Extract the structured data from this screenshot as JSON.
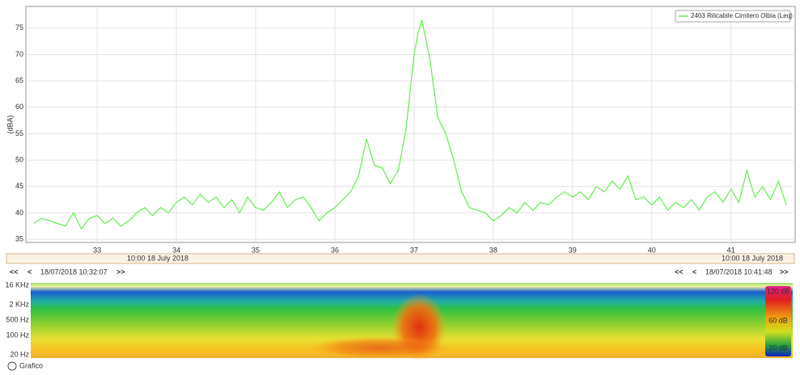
{
  "chart_data": {
    "type": "line",
    "y_label": "(dBA)",
    "x": [
      32.2,
      32.3,
      32.4,
      32.5,
      32.6,
      32.7,
      32.8,
      32.9,
      33.0,
      33.1,
      33.2,
      33.3,
      33.4,
      33.5,
      33.6,
      33.7,
      33.8,
      33.9,
      34.0,
      34.1,
      34.2,
      34.3,
      34.4,
      34.5,
      34.6,
      34.7,
      34.8,
      34.9,
      35.0,
      35.1,
      35.2,
      35.3,
      35.4,
      35.5,
      35.6,
      35.7,
      35.8,
      35.9,
      36.0,
      36.1,
      36.2,
      36.3,
      36.4,
      36.5,
      36.6,
      36.7,
      36.8,
      36.9,
      37.0,
      37.05,
      37.1,
      37.2,
      37.3,
      37.4,
      37.5,
      37.6,
      37.7,
      37.8,
      37.9,
      38.0,
      38.1,
      38.2,
      38.3,
      38.4,
      38.5,
      38.6,
      38.7,
      38.8,
      38.9,
      39.0,
      39.1,
      39.2,
      39.3,
      39.4,
      39.5,
      39.6,
      39.7,
      39.8,
      39.9,
      40.0,
      40.1,
      40.2,
      40.3,
      40.4,
      40.5,
      40.6,
      40.7,
      40.8,
      40.9,
      41.0,
      41.1,
      41.2,
      41.3,
      41.4,
      41.5,
      41.6,
      41.7
    ],
    "series": [
      {
        "name": "2403 Rilicabile Cimitero Olbia (Leq)",
        "color": "#66ee55",
        "values": [
          38,
          39,
          38.5,
          38,
          37.5,
          40,
          37,
          39,
          39.5,
          38,
          39,
          37.5,
          38.5,
          40,
          41,
          39.5,
          41,
          40,
          42,
          43,
          41.5,
          43.5,
          42,
          43,
          41,
          42.5,
          40,
          43,
          41,
          40.5,
          42,
          44,
          41,
          42.5,
          43,
          41,
          38.5,
          40,
          41,
          42.5,
          44,
          47,
          54,
          49,
          48.5,
          45.5,
          48,
          56,
          70,
          74,
          76.5,
          69,
          58,
          55,
          50,
          44,
          41,
          40.5,
          40,
          38.5,
          39.5,
          41,
          40,
          42,
          40.5,
          42,
          41.5,
          43,
          44,
          43,
          44,
          42.5,
          45,
          44,
          46,
          44.5,
          47,
          42.5,
          43,
          41.5,
          43,
          40.5,
          42,
          41,
          42.5,
          40.5,
          43,
          44,
          42,
          44.5,
          42,
          48,
          43,
          45,
          42.5,
          46,
          41.5
        ]
      }
    ],
    "xlim": [
      32.1,
      41.81
    ],
    "xticks": [
      33,
      34,
      35,
      36,
      37,
      38,
      39,
      40,
      41
    ],
    "ylim": [
      34.4,
      79.1
    ],
    "yticks": [
      35,
      40,
      45,
      50,
      55,
      60,
      65,
      70,
      75
    ],
    "grid": true,
    "legend": "upper right"
  },
  "ui": {
    "date_band": [
      "10:00 18 July 2018",
      "10:00 18 July 2018"
    ],
    "nav_left": {
      "first": "<<",
      "prev": "<",
      "time": "18/07/2018 10:32:07",
      "next": ">>"
    },
    "nav_right": {
      "first": "<<",
      "prev": "<",
      "time": "18/07/2018 10:41:48",
      "next": ">>"
    },
    "spectrogram": {
      "freq_labels": [
        "16 KHz",
        "2 KHz",
        "500 Hz",
        "100 Hz",
        "20 Hz"
      ],
      "scale_labels": [
        "120 dB",
        "60 dB",
        "20 dB"
      ]
    },
    "footer": "Grafico"
  }
}
